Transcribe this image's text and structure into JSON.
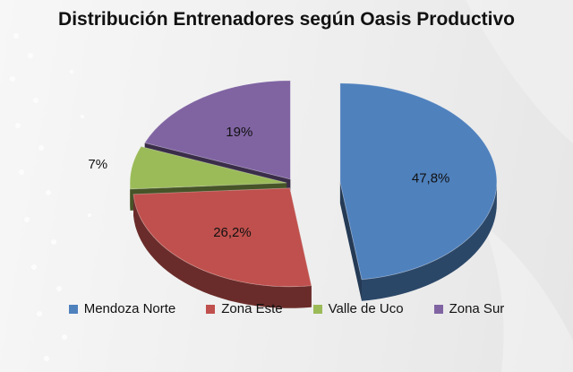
{
  "chart_data": {
    "type": "pie",
    "title": "Distribución Entrenadores según Oasis Productivo",
    "series": [
      {
        "name": "Mendoza Norte",
        "value": 47.8,
        "label": "47,8%",
        "color": "#4f81bd",
        "exploded": true
      },
      {
        "name": "Zona Este",
        "value": 26.2,
        "label": "26,2%",
        "color": "#c0504d",
        "exploded": false
      },
      {
        "name": "Valle de Uco",
        "value": 7,
        "label": "7%",
        "color": "#9bbb59",
        "exploded": false
      },
      {
        "name": "Zona Sur",
        "value": 19,
        "label": "19%",
        "color": "#8064a2",
        "exploded": false
      }
    ],
    "legend": "bottom",
    "style": "3d-exploded"
  }
}
